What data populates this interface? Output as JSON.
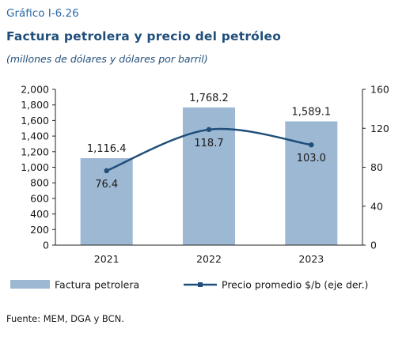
{
  "header": {
    "kicker": "Gráfico I-6.26",
    "title": "Factura petrolera y precio del petróleo",
    "subtitle": "(millones de dólares y dólares por barril)"
  },
  "source": "Fuente: MEM, DGA y BCN.",
  "chart_data": {
    "type": "bar",
    "categories": [
      "2021",
      "2022",
      "2023"
    ],
    "series": [
      {
        "name": "Factura petrolera",
        "kind": "bar",
        "axis": "left",
        "values": [
          1116.4,
          1768.2,
          1589.1
        ],
        "labels": [
          "1,116.4",
          "1,768.2",
          "1,589.1"
        ],
        "color": "#9db8d2"
      },
      {
        "name": "Precio promedio $/b (eje der.)",
        "kind": "line",
        "axis": "right",
        "values": [
          76.4,
          118.7,
          103.0
        ],
        "labels": [
          "76.4",
          "118.7",
          "103.0"
        ],
        "color": "#1f4e7a"
      }
    ],
    "ylim_left": [
      0,
      2000
    ],
    "yticks_left": [
      "0",
      "200",
      "400",
      "600",
      "800",
      "1,000",
      "1,200",
      "1,400",
      "1,600",
      "1,800",
      "2,000"
    ],
    "ylim_right": [
      0,
      160
    ],
    "yticks_right": [
      "0",
      "40",
      "80",
      "120",
      "160"
    ],
    "legend_position": "bottom",
    "grid": false
  }
}
